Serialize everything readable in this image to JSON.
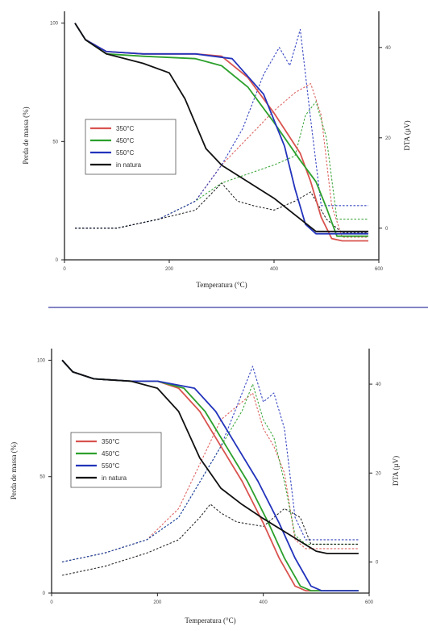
{
  "chart_data": [
    {
      "type": "line",
      "xlabel": "Temperatura (°C)",
      "ylabel": "Perda de massa (%)",
      "y2label": "DTA (µV)",
      "x_ticks": [
        "0",
        "200",
        "400",
        "600"
      ],
      "y_ticks": [
        "0",
        "50",
        "100"
      ],
      "y2_ticks": [
        "0",
        "20",
        "40"
      ],
      "xlim": [
        0,
        600
      ],
      "ylim": [
        0,
        105
      ],
      "y2lim": [
        -7,
        48
      ],
      "legend_position": "middle-left",
      "series": [
        {
          "name": "350°C",
          "color": "#d9534f",
          "kind": "tga",
          "x": [
            20,
            40,
            80,
            150,
            250,
            300,
            350,
            400,
            450,
            470,
            490,
            510,
            530,
            580
          ],
          "y": [
            100,
            93,
            88,
            87,
            87,
            86,
            77,
            62,
            45,
            33,
            18,
            9,
            8,
            8
          ]
        },
        {
          "name": "450°C",
          "color": "#2ca02c",
          "kind": "tga",
          "x": [
            20,
            40,
            80,
            150,
            250,
            300,
            350,
            400,
            450,
            480,
            500,
            520,
            580
          ],
          "y": [
            100,
            93,
            87,
            86,
            85,
            82,
            73,
            58,
            42,
            33,
            22,
            10,
            10
          ]
        },
        {
          "name": "550°C",
          "color": "#2233bb",
          "kind": "tga",
          "x": [
            20,
            40,
            80,
            150,
            250,
            320,
            380,
            420,
            440,
            460,
            480,
            580
          ],
          "y": [
            100,
            93,
            88,
            87,
            87,
            85,
            70,
            48,
            30,
            15,
            11,
            11
          ]
        },
        {
          "name": "in natura",
          "color": "#111111",
          "kind": "tga",
          "x": [
            20,
            40,
            80,
            150,
            200,
            230,
            270,
            300,
            350,
            400,
            440,
            480,
            580
          ],
          "y": [
            100,
            93,
            87,
            83,
            79,
            68,
            47,
            40,
            33,
            26,
            19,
            12,
            12
          ]
        },
        {
          "name": "350°C DTA",
          "color": "#d9534f",
          "kind": "dta",
          "x": [
            20,
            100,
            180,
            250,
            300,
            350,
            400,
            440,
            470,
            490,
            510,
            530,
            580
          ],
          "y": [
            0,
            0,
            2,
            6,
            14,
            20,
            26,
            30,
            32,
            25,
            5,
            -2,
            -2
          ]
        },
        {
          "name": "450°C DTA",
          "color": "#2ca02c",
          "kind": "dta",
          "x": [
            20,
            100,
            180,
            250,
            300,
            350,
            400,
            440,
            460,
            480,
            500,
            520,
            580
          ],
          "y": [
            0,
            0,
            2,
            6,
            10,
            12,
            14,
            16,
            25,
            28,
            20,
            2,
            2
          ]
        },
        {
          "name": "550°C DTA",
          "color": "#2233bb",
          "kind": "dta",
          "x": [
            20,
            100,
            180,
            250,
            300,
            340,
            380,
            410,
            430,
            450,
            470,
            490,
            580
          ],
          "y": [
            0,
            0,
            2,
            6,
            14,
            22,
            34,
            40,
            36,
            44,
            24,
            5,
            5
          ]
        },
        {
          "name": "in natura DTA",
          "color": "#111111",
          "kind": "dta",
          "x": [
            20,
            100,
            180,
            250,
            300,
            330,
            360,
            400,
            440,
            470,
            500,
            530,
            580
          ],
          "y": [
            0,
            0,
            2,
            4,
            10,
            6,
            5,
            4,
            6,
            8,
            2,
            -1,
            -1
          ]
        }
      ],
      "legend_entries": [
        "350°C",
        "450°C",
        "550°C",
        "in natura"
      ]
    },
    {
      "type": "line",
      "xlabel": "Temperatura (°C)",
      "ylabel": "Perda de massa (%)",
      "y2label": "DTA (µV)",
      "x_ticks": [
        "0",
        "200",
        "400",
        "600"
      ],
      "y_ticks": [
        "0",
        "50",
        "100"
      ],
      "y2_ticks": [
        "0",
        "20",
        "40"
      ],
      "xlim": [
        0,
        600
      ],
      "ylim": [
        0,
        105
      ],
      "y2lim": [
        -7,
        48
      ],
      "legend_position": "middle-left",
      "series": [
        {
          "name": "350°C",
          "color": "#d9534f",
          "kind": "tga",
          "x": [
            20,
            40,
            80,
            150,
            200,
            240,
            280,
            320,
            360,
            400,
            430,
            460,
            480,
            580
          ],
          "y": [
            100,
            95,
            92,
            91,
            91,
            88,
            78,
            63,
            48,
            30,
            15,
            3,
            1,
            1
          ]
        },
        {
          "name": "450°C",
          "color": "#2ca02c",
          "kind": "tga",
          "x": [
            20,
            40,
            80,
            150,
            200,
            250,
            290,
            330,
            370,
            410,
            440,
            470,
            490,
            580
          ],
          "y": [
            100,
            95,
            92,
            91,
            91,
            88,
            78,
            63,
            48,
            30,
            15,
            3,
            1,
            1
          ]
        },
        {
          "name": "550°C",
          "color": "#2233bb",
          "kind": "tga",
          "x": [
            20,
            40,
            80,
            150,
            200,
            270,
            310,
            350,
            390,
            430,
            460,
            490,
            510,
            580
          ],
          "y": [
            100,
            95,
            92,
            91,
            91,
            88,
            78,
            63,
            48,
            30,
            15,
            3,
            1,
            1
          ]
        },
        {
          "name": "in natura",
          "color": "#111111",
          "kind": "tga",
          "x": [
            20,
            40,
            80,
            150,
            200,
            240,
            280,
            320,
            360,
            400,
            450,
            500,
            520,
            580
          ],
          "y": [
            100,
            95,
            92,
            91,
            88,
            78,
            58,
            45,
            38,
            32,
            25,
            18,
            17,
            17
          ]
        },
        {
          "name": "350°C DTA",
          "color": "#d9534f",
          "kind": "dta",
          "x": [
            20,
            100,
            180,
            240,
            280,
            320,
            360,
            380,
            400,
            420,
            440,
            460,
            480,
            580
          ],
          "y": [
            0,
            2,
            5,
            12,
            22,
            32,
            36,
            38,
            30,
            26,
            20,
            5,
            3,
            3
          ]
        },
        {
          "name": "450°C DTA",
          "color": "#2ca02c",
          "kind": "dta",
          "x": [
            20,
            100,
            180,
            240,
            280,
            320,
            360,
            380,
            400,
            420,
            440,
            460,
            480,
            580
          ],
          "y": [
            0,
            2,
            5,
            10,
            18,
            26,
            34,
            40,
            32,
            28,
            18,
            6,
            4,
            4
          ]
        },
        {
          "name": "550°C DTA",
          "color": "#2233bb",
          "kind": "dta",
          "x": [
            20,
            100,
            180,
            240,
            280,
            320,
            360,
            380,
            400,
            420,
            440,
            460,
            480,
            580
          ],
          "y": [
            0,
            2,
            5,
            10,
            18,
            26,
            38,
            44,
            36,
            38,
            30,
            10,
            5,
            5
          ]
        },
        {
          "name": "in natura DTA",
          "color": "#111111",
          "kind": "dta",
          "x": [
            20,
            100,
            180,
            240,
            280,
            300,
            320,
            350,
            400,
            440,
            470,
            490,
            580
          ],
          "y": [
            -3,
            -1,
            2,
            5,
            10,
            13,
            11,
            9,
            8,
            12,
            10,
            4,
            4
          ]
        }
      ],
      "legend_entries": [
        "350°C",
        "450°C",
        "550°C",
        "in natura"
      ]
    }
  ],
  "legend_colors": [
    "#d9534f",
    "#2ca02c",
    "#2233bb",
    "#111111"
  ]
}
